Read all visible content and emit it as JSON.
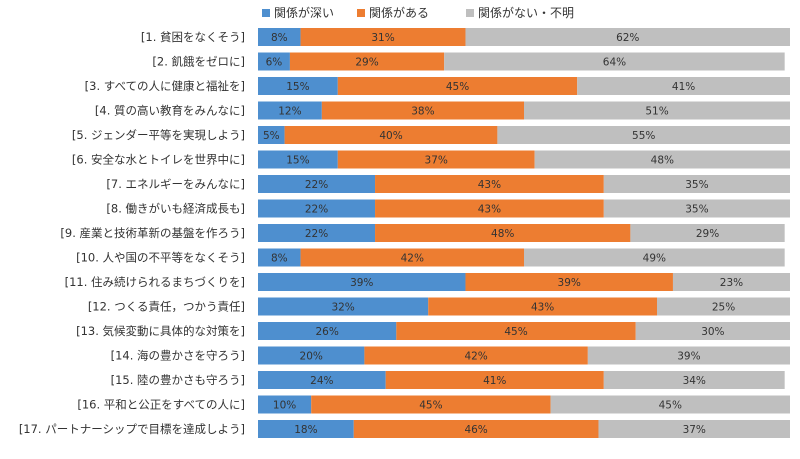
{
  "chart_data": {
    "type": "bar",
    "orientation": "horizontal",
    "stacked": true,
    "percent_axis_max": 100,
    "categories": [
      "[1.  貧困をなくそう]",
      "[2.  飢餓をゼロに]",
      "[3.  すべての人に健康と福祉を]",
      "[4.  質の高い教育をみんなに]",
      "[5.  ジェンダー平等を実現しよう]",
      "[6.  安全な水とトイレを世界中に]",
      "[7.  エネルギーをみんなに]",
      "[8.  働きがいも経済成長も]",
      "[9.  産業と技術革新の基盤を作ろう]",
      "[10.  人や国の不平等をなくそう]",
      "[11.  住み続けられるまちづくりを]",
      "[12.  つくる責任，つかう責任]",
      "[13.  気候変動に具体的な対策を]",
      "[14.  海の豊かさを守ろう]",
      "[15.  陸の豊かさも守ろう]",
      "[16.  平和と公正をすべての人に]",
      "[17.  パートナーシップで目標を達成しよう]"
    ],
    "series": [
      {
        "name": "関係が深い",
        "color": "#4e8fcf",
        "values": [
          8,
          6,
          15,
          12,
          5,
          15,
          22,
          22,
          22,
          8,
          39,
          32,
          26,
          20,
          24,
          10,
          18
        ]
      },
      {
        "name": "関係がある",
        "color": "#ed7d31",
        "values": [
          31,
          29,
          45,
          38,
          40,
          37,
          43,
          43,
          48,
          42,
          39,
          43,
          45,
          42,
          41,
          45,
          46
        ]
      },
      {
        "name": "関係がない・不明",
        "color": "#bfbfbf",
        "values": [
          62,
          64,
          41,
          51,
          55,
          48,
          35,
          35,
          29,
          49,
          23,
          25,
          30,
          39,
          34,
          45,
          37
        ]
      }
    ],
    "value_suffix": "%",
    "legend_position": "top",
    "grid": false
  }
}
